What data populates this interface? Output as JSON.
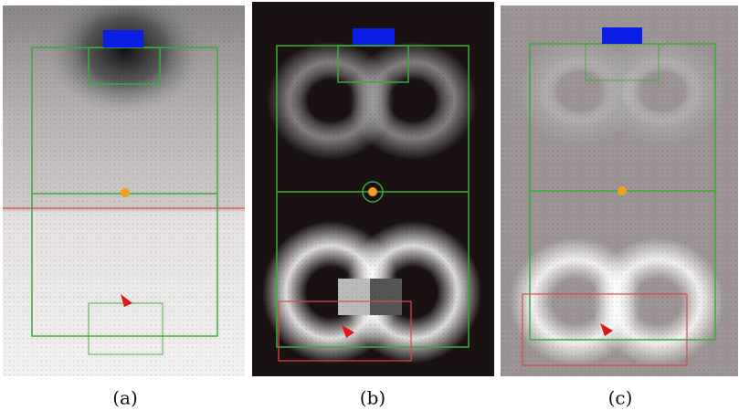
{
  "panels": [
    {
      "caption": "(a)"
    },
    {
      "caption": "(b)"
    },
    {
      "caption": "(c)"
    }
  ]
}
